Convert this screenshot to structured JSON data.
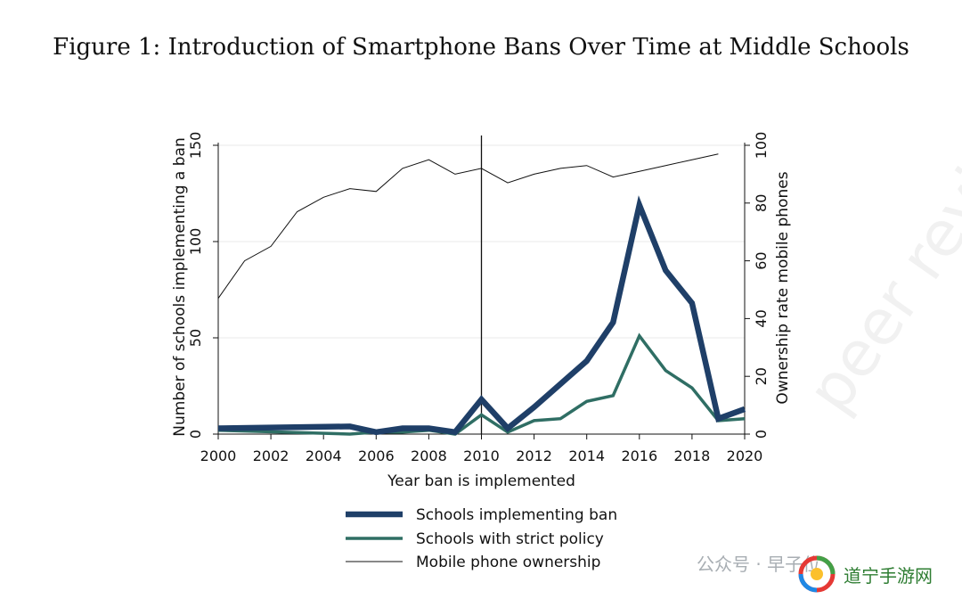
{
  "figure": {
    "title": "Figure 1: Introduction of Smartphone Bans Over Time at Middle Schools"
  },
  "chart_data": {
    "type": "line",
    "xlabel": "Year ban is implemented",
    "ylabel_left": "Number of schools implementing a ban",
    "ylabel_right": "Ownership rate mobile phones",
    "xlim": [
      2000,
      2020
    ],
    "ylim_left": [
      0,
      150
    ],
    "ylim_right": [
      0,
      100
    ],
    "x_ticks": [
      2000,
      2002,
      2004,
      2006,
      2008,
      2010,
      2012,
      2014,
      2016,
      2018,
      2020
    ],
    "y_left_ticks": [
      0,
      50,
      100,
      150
    ],
    "y_right_ticks": [
      0,
      20,
      40,
      60,
      80,
      100
    ],
    "grid": "horizontal",
    "vline_x": 2010,
    "series": [
      {
        "name": "Schools implementing ban",
        "axis": "left",
        "color": "#1f3f68",
        "x": [
          2000,
          2005,
          2006,
          2007,
          2008,
          2009,
          2010,
          2011,
          2012,
          2013,
          2014,
          2015,
          2016,
          2017,
          2018,
          2019,
          2020
        ],
        "values": [
          3,
          4,
          1,
          3,
          3,
          1,
          18,
          3,
          14,
          26,
          38,
          58,
          119,
          85,
          68,
          8,
          13
        ]
      },
      {
        "name": "Schools with strict policy",
        "axis": "left",
        "color": "#2f6e64",
        "x": [
          2000,
          2005,
          2006,
          2007,
          2008,
          2009,
          2010,
          2011,
          2012,
          2013,
          2014,
          2015,
          2016,
          2017,
          2018,
          2019,
          2020
        ],
        "values": [
          2,
          0,
          1,
          1,
          2,
          0,
          10,
          1,
          7,
          8,
          17,
          20,
          51,
          33,
          24,
          7,
          8
        ]
      },
      {
        "name": "Mobile phone ownership",
        "axis": "right",
        "color": "#111111",
        "x": [
          2000,
          2001,
          2002,
          2003,
          2004,
          2005,
          2006,
          2007,
          2008,
          2009,
          2010,
          2011,
          2012,
          2013,
          2014,
          2015,
          2016,
          2017,
          2018,
          2019
        ],
        "values": [
          47,
          60,
          65,
          77,
          82,
          85,
          84,
          92,
          95,
          90,
          92,
          87,
          90,
          92,
          93,
          89,
          91,
          93,
          95,
          97
        ]
      }
    ],
    "legend_position": "bottom"
  },
  "watermark": {
    "text": "peer reviewe",
    "bottom_text": "公众号 · 早子位",
    "badge_text": "道宁手游网"
  }
}
